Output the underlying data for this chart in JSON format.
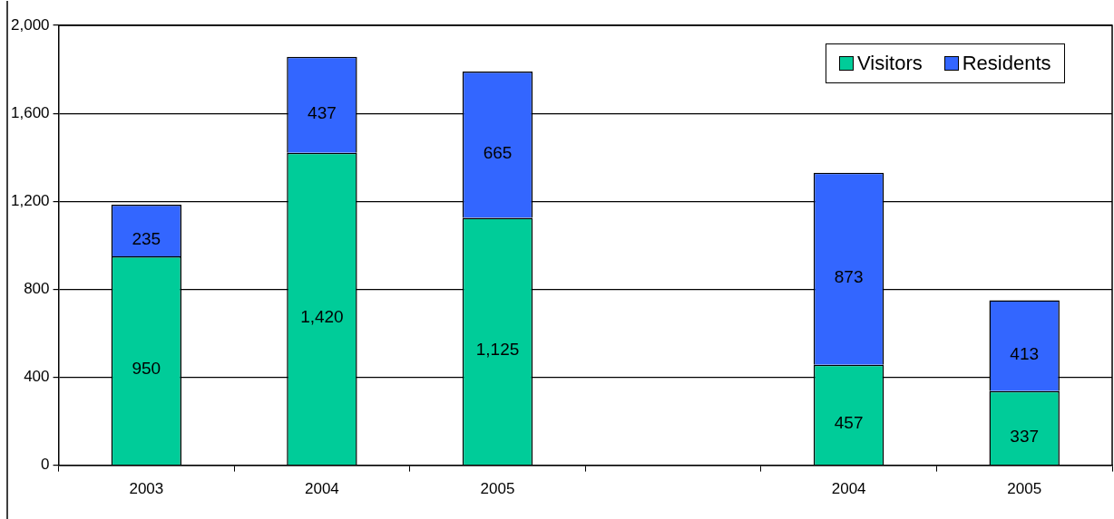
{
  "chart_data": {
    "type": "bar",
    "stacked": true,
    "categories": [
      "2003",
      "2004",
      "2005",
      null,
      "2004",
      "2005"
    ],
    "series": [
      {
        "name": "Visitors",
        "color": "#00cc99",
        "values": [
          950,
          1420,
          1125,
          null,
          457,
          337
        ],
        "value_labels": [
          "950",
          "1,420",
          "1,125",
          null,
          "457",
          "337"
        ]
      },
      {
        "name": "Residents",
        "color": "#3366ff",
        "values": [
          235,
          437,
          665,
          null,
          873,
          413
        ],
        "value_labels": [
          "235",
          "437",
          "665",
          null,
          "873",
          "413"
        ]
      }
    ],
    "ylim": [
      0,
      2000
    ],
    "yticks": [
      {
        "value": 0,
        "label": "0"
      },
      {
        "value": 400,
        "label": "400"
      },
      {
        "value": 800,
        "label": "800"
      },
      {
        "value": 1200,
        "label": "1,200"
      },
      {
        "value": 1600,
        "label": "1,600"
      },
      {
        "value": 2000,
        "label": "2,000"
      }
    ],
    "grid": "y",
    "legend": "top right"
  }
}
